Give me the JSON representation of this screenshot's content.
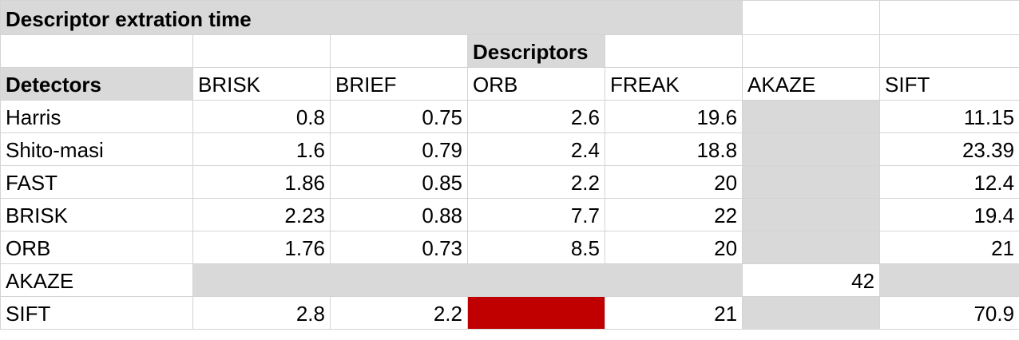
{
  "title": "Descriptor extration time",
  "descriptors_header": "Descriptors",
  "detectors_header": "Detectors",
  "columns": [
    "BRISK",
    "BRIEF",
    "ORB",
    "FREAK",
    "AKAZE",
    "SIFT"
  ],
  "rows": [
    {
      "label": "Harris",
      "values": [
        "0.8",
        "0.75",
        "2.6",
        "19.6",
        "",
        "11.15"
      ]
    },
    {
      "label": "Shito-masi",
      "values": [
        "1.6",
        "0.79",
        "2.4",
        "18.8",
        "",
        "23.39"
      ]
    },
    {
      "label": "FAST",
      "values": [
        "1.86",
        "0.85",
        "2.2",
        "20",
        "",
        "12.4"
      ]
    },
    {
      "label": "BRISK",
      "values": [
        "2.23",
        "0.88",
        "7.7",
        "22",
        "",
        "19.4"
      ]
    },
    {
      "label": "ORB",
      "values": [
        "1.76",
        "0.73",
        "8.5",
        "20",
        "",
        "21"
      ]
    },
    {
      "label": "AKAZE",
      "values": [
        "",
        "",
        "",
        "",
        "42",
        ""
      ]
    },
    {
      "label": "SIFT",
      "values": [
        "2.8",
        "2.2",
        "",
        "21",
        "",
        "70.9"
      ]
    }
  ],
  "colors": {
    "header_fill": "#d9d9d9",
    "not_applicable_fill": "#d9d9d9",
    "highlight_fill": "#c00000",
    "grid_line": "#d4d4d4"
  }
}
